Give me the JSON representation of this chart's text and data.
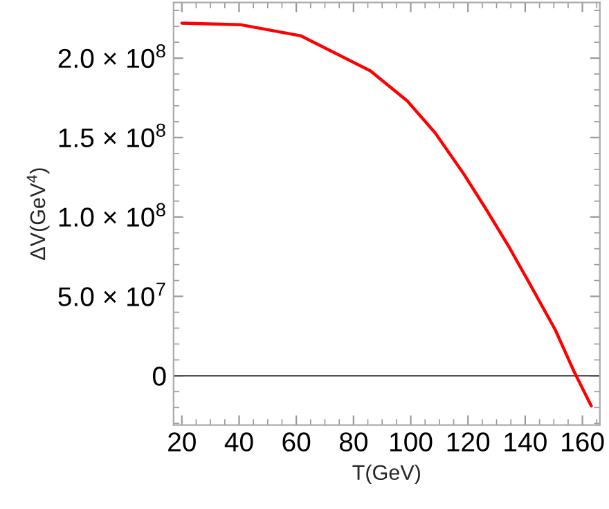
{
  "chart_data": {
    "type": "line",
    "xlabel": "T(GeV)",
    "ylabel": "ΔV(GeV$^{4}$)",
    "x": [
      20,
      40.7,
      61.7,
      85.9,
      98.8,
      108.5,
      118.2,
      126.3,
      134.4,
      142.5,
      150.5,
      157,
      163.1
    ],
    "series": [
      {
        "color": "#ff0000",
        "values": [
          222000000,
          221000000,
          214000000,
          192000000,
          173000000,
          153000000,
          128000000,
          105000000,
          81000000,
          55000000,
          29000000,
          3000000,
          -19000000
        ]
      }
    ],
    "xlim": [
      17.1,
      166.1
    ],
    "ylim": [
      -31000000,
      235000000
    ],
    "xticks": [
      20,
      40,
      60,
      80,
      100,
      120,
      140,
      160
    ],
    "yticks": [
      0,
      {
        "value": 50000000,
        "label": "5.0 × 10$^{7}$"
      },
      {
        "value": 100000000,
        "label": "1.0 × 10$^{8}$"
      },
      {
        "value": 150000000,
        "label": "1.5 × 10$^{8}$"
      },
      {
        "value": 200000000,
        "label": "2.0 × 10$^{8}$"
      }
    ],
    "ref_lines": [
      {
        "axis": "y",
        "value": 0,
        "color": "#555555"
      }
    ],
    "grid": false,
    "marker": "none",
    "line_style": "solid"
  }
}
